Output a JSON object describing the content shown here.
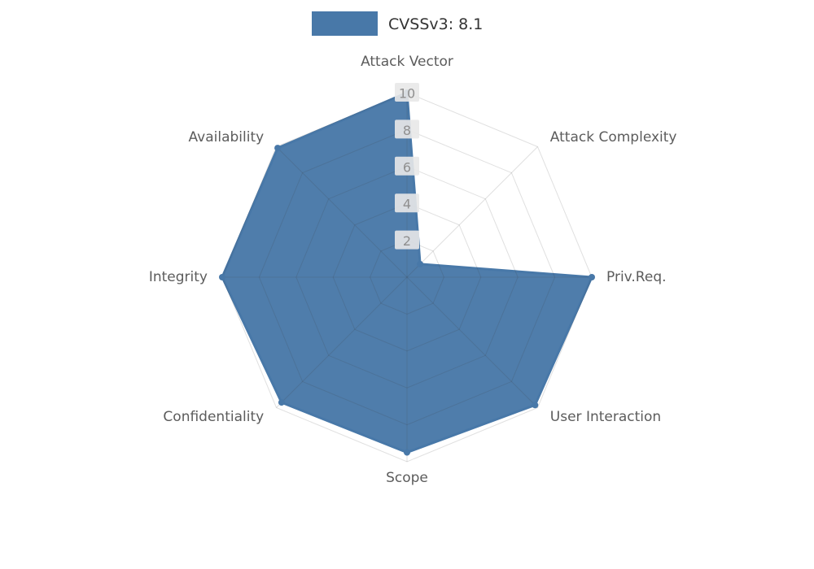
{
  "legend": {
    "label": "CVSSv3: 8.1"
  },
  "chart_data": {
    "type": "radar",
    "title": "CVSSv3: 8.1",
    "axes": [
      "Attack Vector",
      "Attack Complexity",
      "Priv.Req.",
      "User Interaction",
      "Scope",
      "Confidentiality",
      "Integrity",
      "Availability"
    ],
    "values": [
      10,
      1,
      10,
      9.8,
      9.5,
      9.6,
      10,
      9.9
    ],
    "ticks": [
      2,
      4,
      6,
      8,
      10
    ],
    "max": 10,
    "grid_rings": 5,
    "series_color": "#4878a8",
    "grid_color": "rgba(60,60,60,0.16)",
    "axis_label_color": "#5c5c5c",
    "tick_label_color": "#8f8f8f",
    "tick_label_bg": "#e8e8e8",
    "legend_text_color": "#333333"
  }
}
